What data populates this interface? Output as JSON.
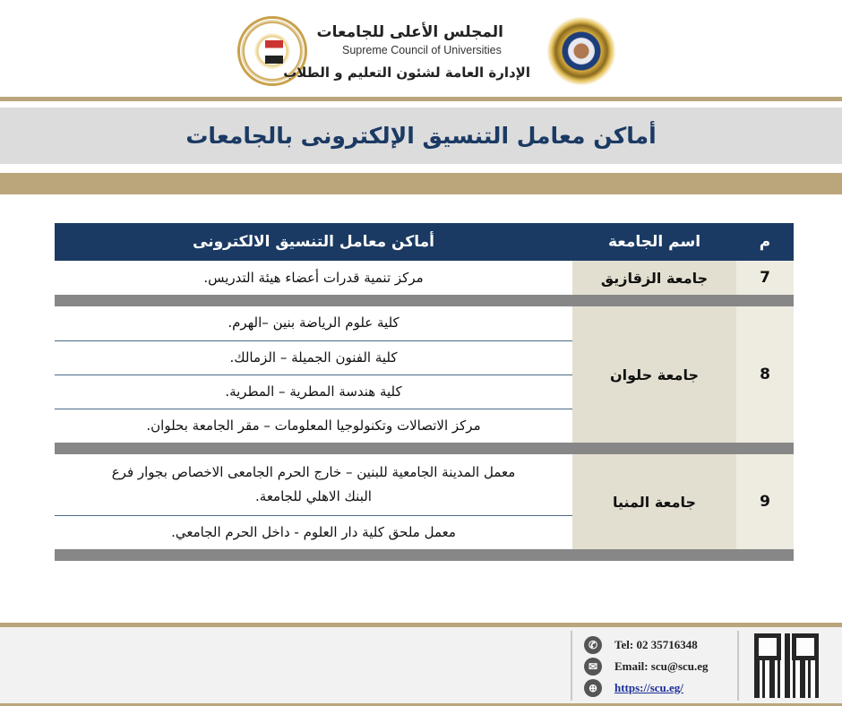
{
  "header": {
    "title_ar": "المجلس الأعلى للجامعات",
    "title_en": "Supreme Council of Universities",
    "subtitle_ar": "الإدارة العامة لشئون التعليم و الطلاب",
    "logos": [
      "ministry-higher-education-logo",
      "supreme-council-logo"
    ]
  },
  "page_title": "أماكن معامل التنسيق الإلكترونى بالجامعات",
  "table": {
    "headers": {
      "num": "م",
      "university": "اسم الجامعة",
      "places": "أماكن معامل التنسيق الالكترونى"
    },
    "rows": [
      {
        "num": "7",
        "university": "جامعة الزقازيق",
        "places": [
          "مركز تنمية قدرات أعضاء هيئة التدريس."
        ]
      },
      {
        "num": "8",
        "university": "جامعة حلوان",
        "places": [
          "كلية علوم الرياضة بنين –الهرم.",
          "كلية الفنون الجميلة – الزمالك.",
          "كلية هندسة المطرية – المطرية.",
          "مركز الاتصالات وتكنولوجيا المعلومات – مقر الجامعة بحلوان."
        ]
      },
      {
        "num": "9",
        "university": "جامعة المنيا",
        "places": [
          "معمل المدينة الجامعية للبنين – خارج الحرم الجامعى الاخصاص بجوار فرع البنك الاهلي للجامعة.",
          "معمل ملحق كلية دار العلوم - داخل الحرم الجامعي."
        ]
      }
    ]
  },
  "footer": {
    "tel": "Tel:  02 35716348",
    "email": "Email:  scu@scu.eg",
    "website": "https://scu.eg/"
  },
  "colors": {
    "navy": "#1b3a63",
    "gold": "#bba57b",
    "gray_band": "#dcdcdc",
    "separator": "#878787"
  }
}
